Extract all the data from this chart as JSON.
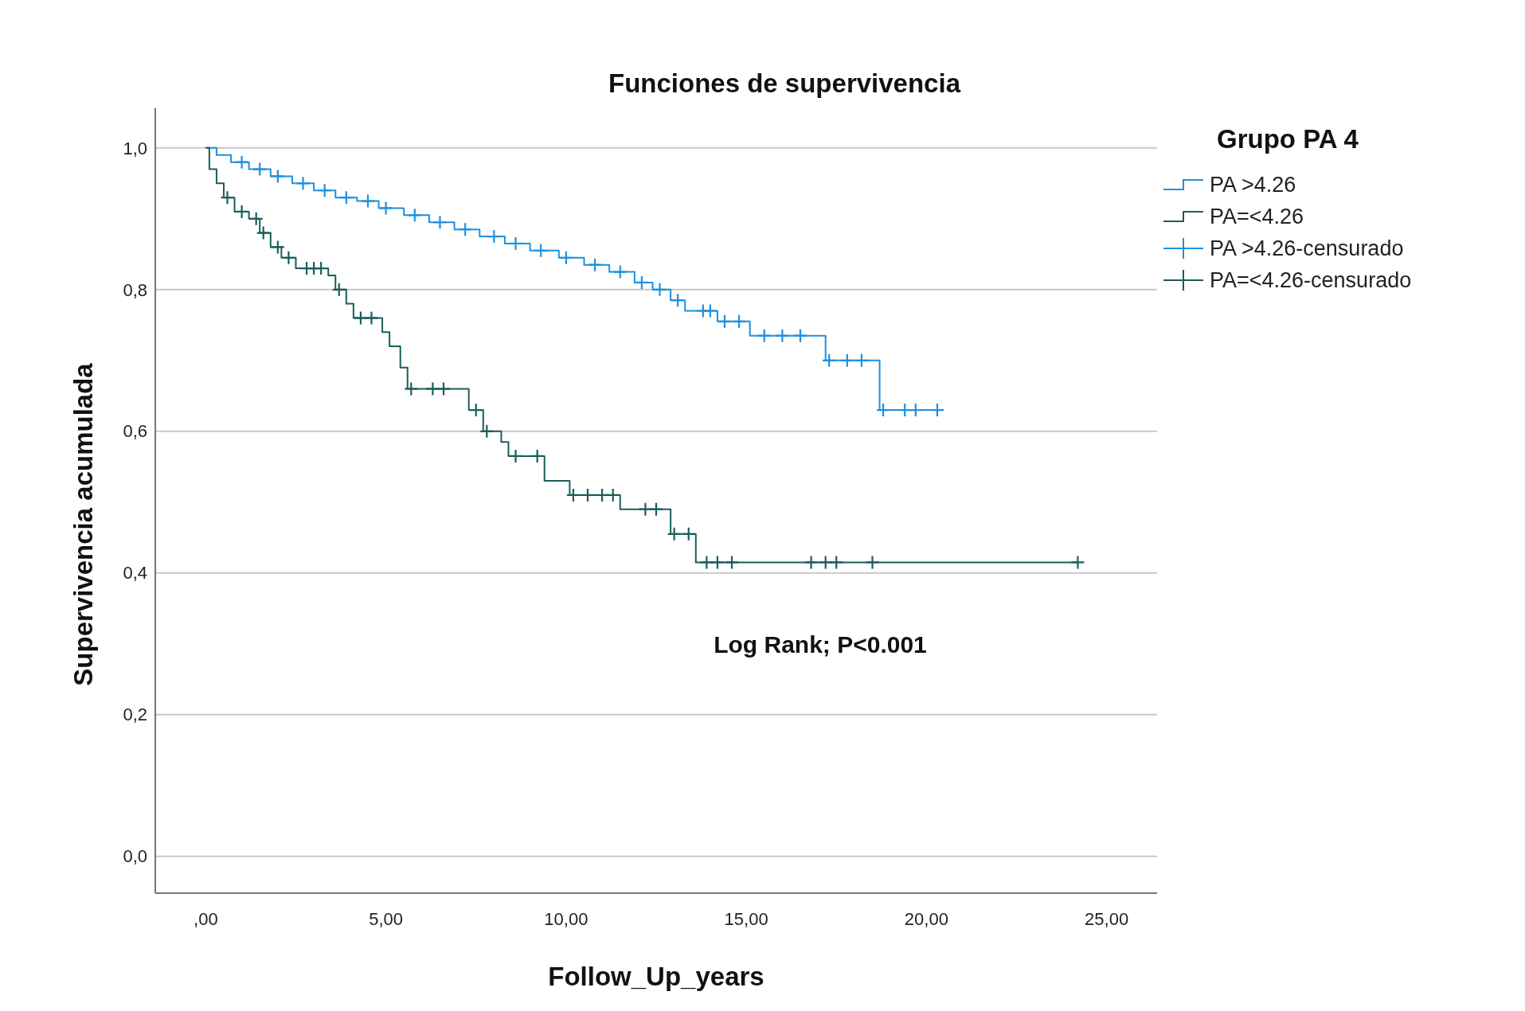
{
  "chart_data": {
    "type": "step",
    "title": "Funciones de supervivencia",
    "xlabel": "Follow_Up_years",
    "ylabel": "Supervivencia acumulada",
    "legend_title": "Grupo PA 4",
    "legend": "right",
    "grid": "y",
    "xlim": [
      -1.4,
      26.4
    ],
    "ylim": [
      -0.052,
      1.056
    ],
    "xticks": [
      {
        "value": 0,
        "label": ",00"
      },
      {
        "value": 5,
        "label": "5,00"
      },
      {
        "value": 10,
        "label": "10,00"
      },
      {
        "value": 15,
        "label": "15,00"
      },
      {
        "value": 20,
        "label": "20,00"
      },
      {
        "value": 25,
        "label": "25,00"
      }
    ],
    "yticks": [
      {
        "value": 0,
        "label": "0,0"
      },
      {
        "value": 0.2,
        "label": "0,2"
      },
      {
        "value": 0.4,
        "label": "0,4"
      },
      {
        "value": 0.6,
        "label": "0,6"
      },
      {
        "value": 0.8,
        "label": "0,8"
      },
      {
        "value": 1,
        "label": "1,0"
      }
    ],
    "annotations": [
      "Log Rank; P<0.001"
    ],
    "series": [
      {
        "name": "PA >4.26",
        "color": "#1e90e0",
        "x": [
          0,
          0.3,
          0.7,
          1.2,
          1.8,
          2.4,
          3.0,
          3.6,
          4.2,
          4.8,
          5.5,
          6.2,
          6.9,
          7.6,
          8.3,
          9.0,
          9.8,
          10.5,
          11.2,
          11.9,
          12.4,
          12.9,
          13.3,
          14.2,
          15.1,
          17.2,
          18.7,
          20.3
        ],
        "values": [
          1,
          0.99,
          0.98,
          0.97,
          0.96,
          0.95,
          0.94,
          0.93,
          0.925,
          0.915,
          0.905,
          0.895,
          0.885,
          0.875,
          0.865,
          0.855,
          0.845,
          0.835,
          0.825,
          0.81,
          0.8,
          0.785,
          0.77,
          0.755,
          0.735,
          0.7,
          0.63,
          0.63
        ]
      },
      {
        "name": "PA=<4.26",
        "color": "#1a5e5a",
        "x": [
          0,
          0.1,
          0.3,
          0.5,
          0.8,
          1.2,
          1.5,
          1.8,
          2.1,
          2.5,
          3.4,
          3.6,
          3.9,
          4.1,
          4.9,
          5.1,
          5.4,
          5.6,
          7.3,
          7.7,
          8.2,
          8.4,
          9.4,
          10.1,
          11.5,
          12.9,
          13.6,
          24.2
        ],
        "values": [
          1,
          0.97,
          0.95,
          0.93,
          0.91,
          0.9,
          0.88,
          0.86,
          0.845,
          0.83,
          0.82,
          0.8,
          0.78,
          0.76,
          0.74,
          0.72,
          0.69,
          0.66,
          0.63,
          0.6,
          0.585,
          0.565,
          0.53,
          0.51,
          0.49,
          0.455,
          0.415,
          0.415
        ]
      },
      {
        "name": "PA >4.26-censurado",
        "type": "scatter",
        "marker": "cross",
        "color": "#1e90e0",
        "x": [
          1.0,
          1.5,
          2.0,
          2.7,
          3.3,
          3.9,
          4.5,
          5.0,
          5.8,
          6.5,
          7.2,
          8.0,
          8.6,
          9.3,
          10.0,
          10.8,
          11.5,
          12.1,
          12.6,
          13.1,
          13.8,
          14.0,
          14.4,
          14.8,
          15.5,
          16.0,
          16.5,
          17.3,
          17.8,
          18.2,
          18.8,
          19.4,
          19.7,
          20.3
        ],
        "values": [
          0.98,
          0.97,
          0.96,
          0.95,
          0.94,
          0.93,
          0.925,
          0.915,
          0.905,
          0.895,
          0.885,
          0.875,
          0.865,
          0.855,
          0.845,
          0.835,
          0.825,
          0.81,
          0.8,
          0.785,
          0.77,
          0.77,
          0.755,
          0.755,
          0.735,
          0.735,
          0.735,
          0.7,
          0.7,
          0.7,
          0.63,
          0.63,
          0.63,
          0.63
        ]
      },
      {
        "name": "PA=<4.26-censurado",
        "type": "scatter",
        "marker": "cross",
        "color": "#1a5e5a",
        "x": [
          0.6,
          1.0,
          1.4,
          1.6,
          2.0,
          2.3,
          2.8,
          3.0,
          3.2,
          3.7,
          4.3,
          4.6,
          5.7,
          6.3,
          6.6,
          7.5,
          7.8,
          8.6,
          9.2,
          10.2,
          10.6,
          11.0,
          11.3,
          12.2,
          12.5,
          13.0,
          13.4,
          13.9,
          14.2,
          14.6,
          16.8,
          17.2,
          17.5,
          18.5,
          24.2
        ],
        "values": [
          0.93,
          0.91,
          0.9,
          0.88,
          0.86,
          0.845,
          0.83,
          0.83,
          0.83,
          0.8,
          0.76,
          0.76,
          0.66,
          0.66,
          0.66,
          0.63,
          0.6,
          0.565,
          0.565,
          0.51,
          0.51,
          0.51,
          0.51,
          0.49,
          0.49,
          0.455,
          0.455,
          0.415,
          0.415,
          0.415,
          0.415,
          0.415,
          0.415,
          0.415,
          0.415
        ]
      }
    ]
  }
}
